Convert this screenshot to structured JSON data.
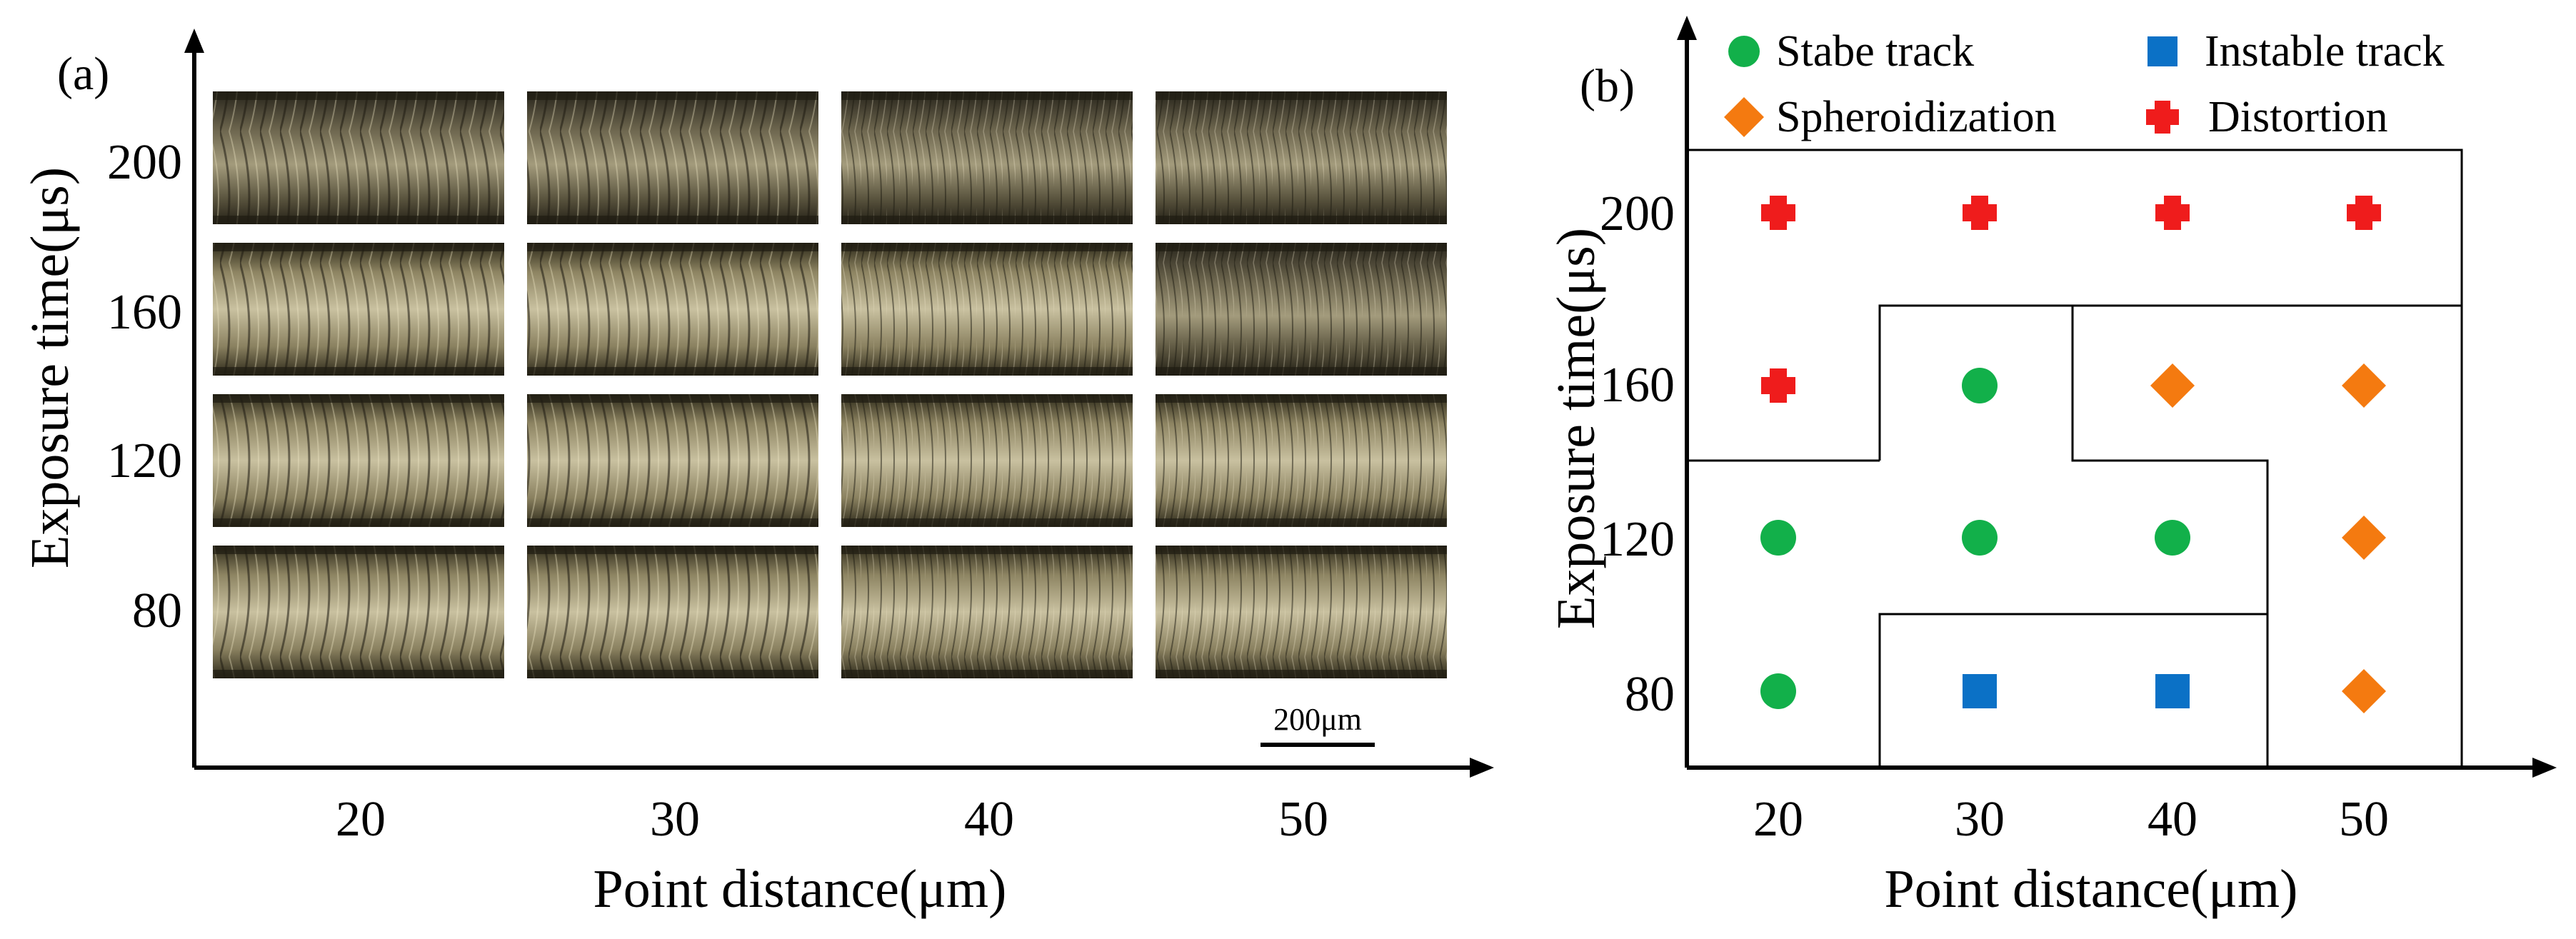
{
  "panel_a": {
    "label": "(a)",
    "xlabel": "Point distance(μm)",
    "ylabel": "Exposure time(μs)",
    "x_ticks": [
      "20",
      "30",
      "40",
      "50"
    ],
    "y_ticks": [
      "200",
      "160",
      "120",
      "80"
    ],
    "scale_bar_label": "200μm",
    "image_description": "optical micrographs of scan tracks"
  },
  "chart_data": {
    "type": "scatter",
    "label": "(b)",
    "xlabel": "Point distance(μm)",
    "ylabel": "Exposure time(μs)",
    "x_categories": [
      "20",
      "30",
      "40",
      "50"
    ],
    "y_categories": [
      "80",
      "120",
      "160",
      "200"
    ],
    "legend": [
      {
        "key": "stable",
        "label": "Stabe track",
        "marker": "circle",
        "color": "#12b04a"
      },
      {
        "key": "instable",
        "label": "Instable track",
        "marker": "square",
        "color": "#0b71c6"
      },
      {
        "key": "spheroidization",
        "label": "Spheroidization",
        "marker": "diamond",
        "color": "#f47a10"
      },
      {
        "key": "distortion",
        "label": "Distortion",
        "marker": "cross",
        "color": "#ef1c1c"
      }
    ],
    "points": [
      {
        "x": 20,
        "y": 200,
        "class": "distortion"
      },
      {
        "x": 30,
        "y": 200,
        "class": "distortion"
      },
      {
        "x": 40,
        "y": 200,
        "class": "distortion"
      },
      {
        "x": 50,
        "y": 200,
        "class": "distortion"
      },
      {
        "x": 20,
        "y": 160,
        "class": "distortion"
      },
      {
        "x": 30,
        "y": 160,
        "class": "stable"
      },
      {
        "x": 40,
        "y": 160,
        "class": "spheroidization"
      },
      {
        "x": 50,
        "y": 160,
        "class": "spheroidization"
      },
      {
        "x": 20,
        "y": 120,
        "class": "stable"
      },
      {
        "x": 30,
        "y": 120,
        "class": "stable"
      },
      {
        "x": 40,
        "y": 120,
        "class": "stable"
      },
      {
        "x": 50,
        "y": 120,
        "class": "spheroidization"
      },
      {
        "x": 20,
        "y": 80,
        "class": "stable"
      },
      {
        "x": 30,
        "y": 80,
        "class": "instable"
      },
      {
        "x": 40,
        "y": 80,
        "class": "instable"
      },
      {
        "x": 50,
        "y": 80,
        "class": "spheroidization"
      }
    ]
  }
}
